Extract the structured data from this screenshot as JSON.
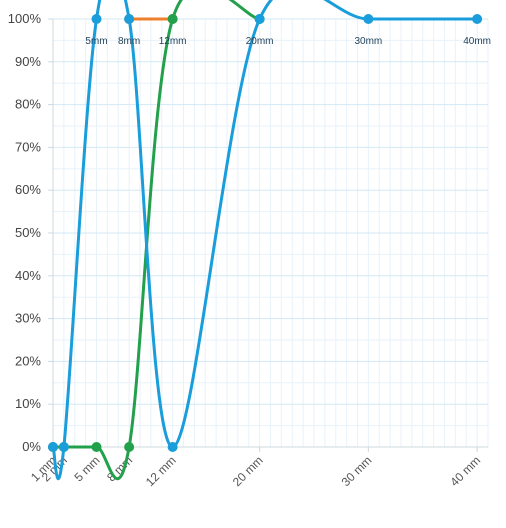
{
  "chart_data": {
    "type": "line",
    "xlabel": "",
    "ylabel": "",
    "xlim": [
      1,
      41
    ],
    "ylim": [
      0,
      100
    ],
    "grid": true,
    "y_ticks": [
      "0%",
      "10%",
      "20%",
      "30%",
      "40%",
      "50%",
      "60%",
      "70%",
      "80%",
      "90%",
      "100%"
    ],
    "x_ticks": [
      {
        "value": 1,
        "label": "1 mm"
      },
      {
        "value": 2,
        "label": "2 mm"
      },
      {
        "value": 5,
        "label": "5 mm"
      },
      {
        "value": 8,
        "label": "8 mm"
      },
      {
        "value": 12,
        "label": "12 mm"
      },
      {
        "value": 20,
        "label": "20 mm"
      },
      {
        "value": 30,
        "label": "30 mm"
      },
      {
        "value": 40,
        "label": "40 mm"
      }
    ],
    "point_labels": [
      {
        "x": 5,
        "text": "5mm"
      },
      {
        "x": 8,
        "text": "8mm"
      },
      {
        "x": 12,
        "text": "12mm"
      },
      {
        "x": 20,
        "text": "20mm"
      },
      {
        "x": 30,
        "text": "30mm"
      },
      {
        "x": 40,
        "text": "40mm"
      }
    ],
    "series": [
      {
        "color": "#ee7f2d",
        "points": [
          [
            8,
            100
          ],
          [
            12,
            100
          ]
        ]
      },
      {
        "color": "#22a04b",
        "points": [
          [
            1,
            0
          ],
          [
            2,
            0
          ],
          [
            5,
            0
          ],
          [
            8,
            0
          ],
          [
            12,
            100
          ],
          [
            20,
            100
          ]
        ]
      },
      {
        "color": "#1a9ddb",
        "points": [
          [
            1,
            0
          ],
          [
            2,
            0
          ],
          [
            5,
            100
          ],
          [
            8,
            100
          ],
          [
            12,
            0
          ],
          [
            20,
            100
          ],
          [
            30,
            100
          ],
          [
            40,
            100
          ]
        ]
      }
    ]
  }
}
